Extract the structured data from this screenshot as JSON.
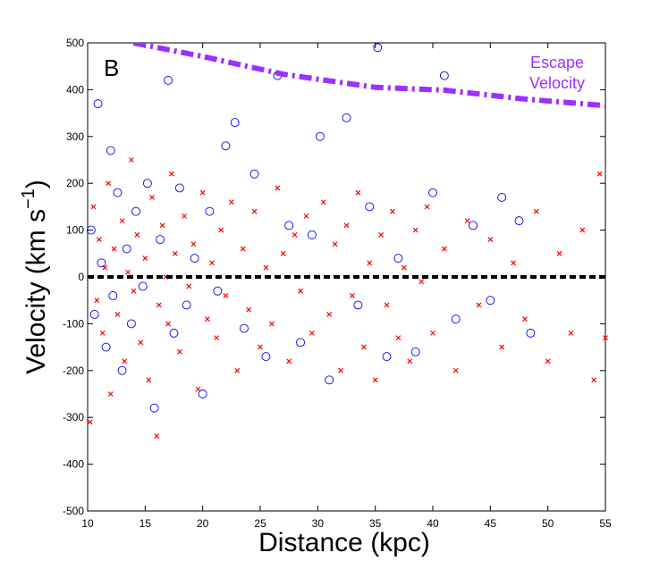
{
  "chart_data": {
    "type": "scatter",
    "xlabel": "Distance (kpc)",
    "ylabel": {
      "text": "Velocity (km s",
      "superscript": "−1",
      "end": ")"
    },
    "annotations": {
      "panel": "B",
      "curve_label": [
        "Escape",
        "Velocity"
      ]
    },
    "xlim": [
      10,
      55
    ],
    "xticks": [
      10,
      15,
      20,
      25,
      30,
      35,
      40,
      45,
      50,
      55
    ],
    "ylim": [
      -500,
      500
    ],
    "yticks": [
      -500,
      -400,
      -300,
      -200,
      -100,
      0,
      100,
      200,
      300,
      400,
      500
    ],
    "series": [
      {
        "marker": "x",
        "color": "#ff0000",
        "x": [
          10.2,
          10.5,
          10.8,
          11,
          11.3,
          11.5,
          11.8,
          12,
          12.3,
          12.6,
          13,
          13.2,
          13.5,
          13.8,
          14,
          14.3,
          14.6,
          15,
          15.3,
          15.6,
          16,
          16.2,
          16.5,
          16.8,
          17,
          17.3,
          17.6,
          18,
          18.4,
          18.8,
          19.2,
          19.6,
          20,
          20.4,
          20.8,
          21.2,
          21.6,
          22,
          22.5,
          23,
          23.5,
          24,
          24.5,
          25,
          25.5,
          26,
          26.5,
          27,
          27.5,
          28,
          28.5,
          29,
          29.5,
          30,
          30.5,
          31,
          31.5,
          32,
          32.5,
          33,
          33.5,
          34,
          34.5,
          35,
          35.5,
          36,
          36.5,
          37,
          37.5,
          38,
          38.5,
          39,
          39.5,
          40,
          41,
          42,
          43,
          44,
          45,
          46,
          47,
          48,
          49,
          50,
          51,
          52,
          53,
          54,
          54.5,
          55
        ],
        "values": [
          -310,
          150,
          -50,
          80,
          -120,
          20,
          200,
          -250,
          60,
          -80,
          120,
          -180,
          10,
          250,
          -30,
          90,
          -140,
          40,
          -220,
          170,
          -340,
          -60,
          110,
          0,
          -100,
          220,
          50,
          -160,
          130,
          -20,
          70,
          -240,
          180,
          -90,
          30,
          -130,
          100,
          -40,
          160,
          -200,
          60,
          -70,
          140,
          -150,
          20,
          -100,
          190,
          50,
          -180,
          90,
          -30,
          130,
          -120,
          0,
          160,
          -80,
          70,
          -200,
          110,
          -40,
          180,
          -150,
          30,
          -220,
          90,
          -60,
          140,
          -130,
          20,
          -180,
          100,
          -10,
          150,
          -120,
          60,
          -200,
          120,
          -60,
          80,
          -150,
          30,
          -90,
          140,
          -180,
          50,
          -120,
          100,
          -220,
          220,
          -130
        ]
      },
      {
        "marker": "circle",
        "color": "#0000ff",
        "x": [
          10.3,
          10.6,
          10.9,
          11.2,
          11.6,
          12,
          12.2,
          12.6,
          13,
          13.4,
          13.8,
          14.2,
          14.8,
          15.2,
          15.8,
          16.3,
          17,
          17.5,
          18,
          18.6,
          19.3,
          20,
          20.6,
          21.3,
          22,
          22.8,
          23.6,
          24.5,
          25.5,
          26.5,
          27.5,
          28.5,
          29.5,
          30.2,
          31,
          32.5,
          33.5,
          34.5,
          35.2,
          36,
          37,
          38.5,
          40,
          41,
          42,
          43.5,
          45,
          46,
          47.5,
          48.5
        ],
        "values": [
          100,
          -80,
          370,
          30,
          -150,
          270,
          -40,
          180,
          -200,
          60,
          -100,
          140,
          -20,
          200,
          -280,
          80,
          420,
          -120,
          190,
          -60,
          40,
          -250,
          140,
          -30,
          280,
          330,
          -110,
          220,
          -170,
          430,
          110,
          -140,
          90,
          300,
          -220,
          340,
          -60,
          150,
          490,
          -170,
          40,
          -160,
          180,
          430,
          -90,
          110,
          -50,
          170,
          120,
          -120
        ]
      },
      {
        "marker": "line",
        "style": "dashdot",
        "color": "#9b30ff",
        "x": [
          14,
          20,
          27,
          35,
          41,
          48,
          55
        ],
        "values": [
          500,
          471,
          433,
          405,
          399,
          380,
          366
        ]
      },
      {
        "marker": "line",
        "style": "dashed",
        "color": "#000000",
        "x": [
          10,
          55
        ],
        "values": [
          0,
          0
        ]
      }
    ]
  }
}
